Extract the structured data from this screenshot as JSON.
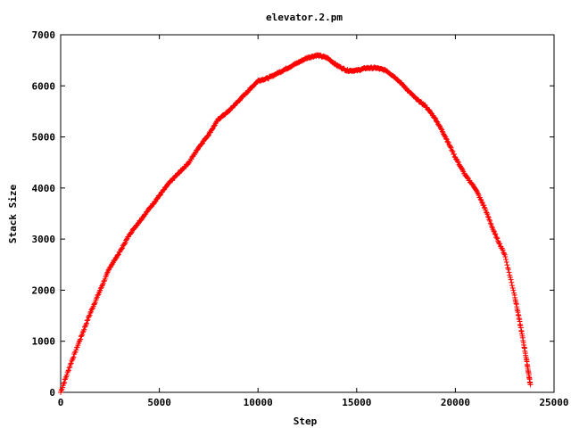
{
  "chart_data": {
    "type": "scatter",
    "title": "elevator.2.pm",
    "xlabel": "Step",
    "ylabel": "Stack Size",
    "xlim": [
      0,
      25000
    ],
    "ylim": [
      0,
      7000
    ],
    "xticks": [
      "0",
      "5000",
      "10000",
      "15000",
      "20000",
      "25000"
    ],
    "yticks": [
      "0",
      "1000",
      "2000",
      "3000",
      "4000",
      "5000",
      "6000",
      "7000"
    ],
    "grid": false,
    "legend": "none",
    "marker": "plus",
    "color": "#ff0000",
    "x": [
      0,
      500,
      1000,
      1500,
      2000,
      2500,
      3000,
      3500,
      4000,
      4500,
      5000,
      5500,
      6000,
      6500,
      7000,
      7500,
      8000,
      8500,
      9000,
      9500,
      10000,
      10500,
      11000,
      11500,
      12000,
      12500,
      13000,
      13500,
      14000,
      14500,
      15000,
      15500,
      16000,
      16500,
      17000,
      17500,
      18000,
      18500,
      19000,
      19500,
      20000,
      20500,
      21000,
      21500,
      22000,
      22500,
      23000,
      23300,
      23600,
      23800
    ],
    "y": [
      0,
      550,
      1050,
      1550,
      2000,
      2450,
      2750,
      3100,
      3350,
      3600,
      3850,
      4100,
      4300,
      4500,
      4800,
      5050,
      5350,
      5500,
      5700,
      5900,
      6100,
      6150,
      6250,
      6350,
      6450,
      6550,
      6600,
      6550,
      6400,
      6300,
      6300,
      6350,
      6350,
      6300,
      6150,
      5950,
      5750,
      5600,
      5350,
      5000,
      4600,
      4250,
      4000,
      3600,
      3100,
      2700,
      1900,
      1300,
      650,
      150
    ]
  }
}
